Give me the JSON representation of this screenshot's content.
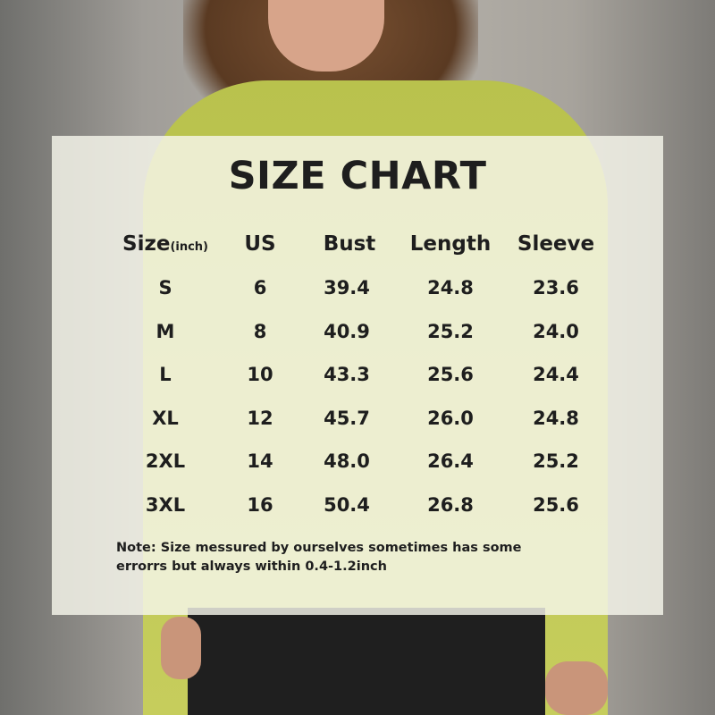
{
  "title": "SIZE CHART",
  "headers": {
    "size": "Size",
    "size_unit": "(inch)",
    "us": "US",
    "bust": "Bust",
    "length": "Length",
    "sleeve": "Sleeve"
  },
  "rows": [
    {
      "size": "S",
      "us": "6",
      "bust": "39.4",
      "length": "24.8",
      "sleeve": "23.6"
    },
    {
      "size": "M",
      "us": "8",
      "bust": "40.9",
      "length": "25.2",
      "sleeve": "24.0"
    },
    {
      "size": "L",
      "us": "10",
      "bust": "43.3",
      "length": "25.6",
      "sleeve": "24.4"
    },
    {
      "size": "XL",
      "us": "12",
      "bust": "45.7",
      "length": "26.0",
      "sleeve": "24.8"
    },
    {
      "size": "2XL",
      "us": "14",
      "bust": "48.0",
      "length": "26.4",
      "sleeve": "25.2"
    },
    {
      "size": "3XL",
      "us": "16",
      "bust": "50.4",
      "length": "26.8",
      "sleeve": "25.6"
    }
  ],
  "note": {
    "line1": "Note:  Size messured by ourselves sometimes has some",
    "line2": "errorrs but always within 0.4-1.2inch"
  }
}
